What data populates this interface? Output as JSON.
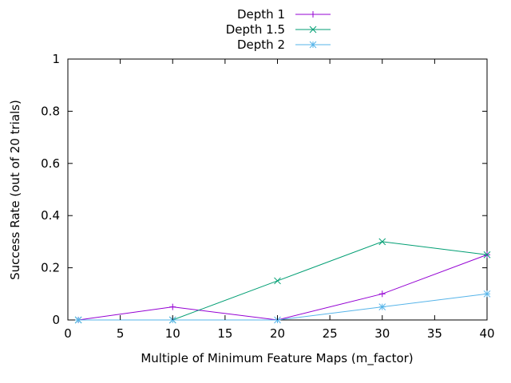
{
  "chart_data": {
    "type": "line",
    "xlabel": "Multiple of Minimum Feature Maps (m_factor)",
    "ylabel": "Success Rate (out of 20 trials)",
    "xlim": [
      0,
      40
    ],
    "ylim": [
      0,
      1
    ],
    "xticks": [
      0,
      5,
      10,
      15,
      20,
      25,
      30,
      35,
      40
    ],
    "yticks": [
      0,
      0.2,
      0.4,
      0.6,
      0.8,
      1
    ],
    "grid": false,
    "legend_position": "top-center",
    "series": [
      {
        "name": "Depth 1",
        "color": "#9400d3",
        "marker": "plus",
        "x": [
          1,
          10,
          20,
          30,
          40
        ],
        "y": [
          0,
          0.05,
          0,
          0.1,
          0.25
        ]
      },
      {
        "name": "Depth 1.5",
        "color": "#009e73",
        "marker": "cross",
        "x": [
          1,
          10,
          20,
          30,
          40
        ],
        "y": [
          0,
          0,
          0.15,
          0.3,
          0.25
        ]
      },
      {
        "name": "Depth 2",
        "color": "#56b4e9",
        "marker": "asterisk",
        "x": [
          1,
          10,
          20,
          30,
          40
        ],
        "y": [
          0,
          0,
          0,
          0.05,
          0.1
        ]
      }
    ]
  }
}
